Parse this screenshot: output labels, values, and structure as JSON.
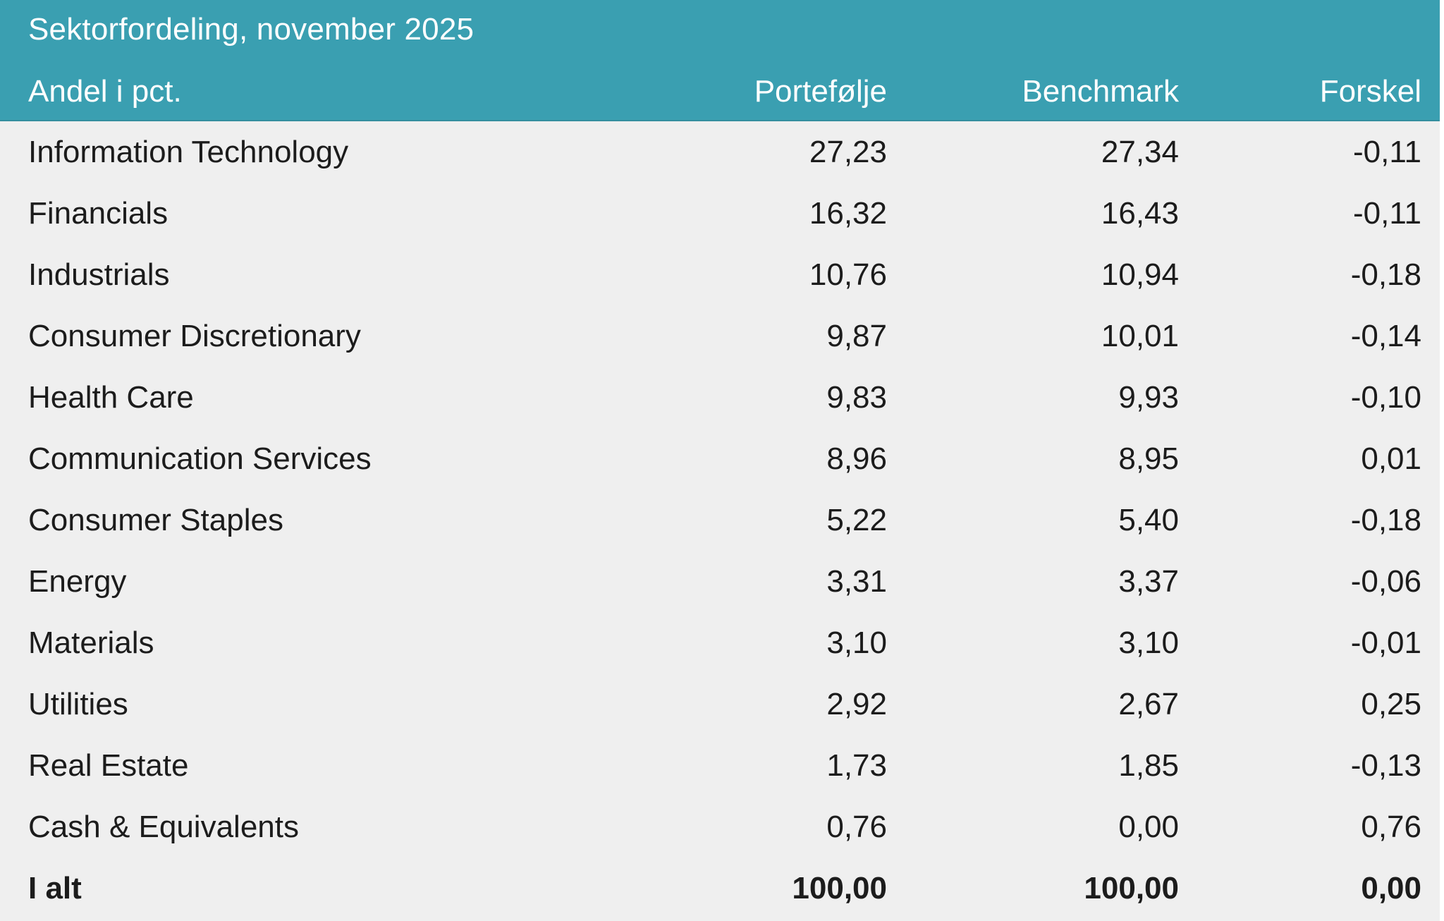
{
  "table": {
    "title": "Sektorfordeling, november 2025",
    "columns": [
      "Andel i pct.",
      "Portefølje",
      "Benchmark",
      "Forskel"
    ],
    "rows": [
      {
        "label": "Information Technology",
        "portfolio": "27,23",
        "benchmark": "27,34",
        "difference": "-0,11"
      },
      {
        "label": "Financials",
        "portfolio": "16,32",
        "benchmark": "16,43",
        "difference": "-0,11"
      },
      {
        "label": "Industrials",
        "portfolio": "10,76",
        "benchmark": "10,94",
        "difference": "-0,18"
      },
      {
        "label": "Consumer Discretionary",
        "portfolio": "9,87",
        "benchmark": "10,01",
        "difference": "-0,14"
      },
      {
        "label": "Health Care",
        "portfolio": "9,83",
        "benchmark": "9,93",
        "difference": "-0,10"
      },
      {
        "label": "Communication Services",
        "portfolio": "8,96",
        "benchmark": "8,95",
        "difference": "0,01"
      },
      {
        "label": "Consumer Staples",
        "portfolio": "5,22",
        "benchmark": "5,40",
        "difference": "-0,18"
      },
      {
        "label": "Energy",
        "portfolio": "3,31",
        "benchmark": "3,37",
        "difference": "-0,06"
      },
      {
        "label": "Materials",
        "portfolio": "3,10",
        "benchmark": "3,10",
        "difference": "-0,01"
      },
      {
        "label": "Utilities",
        "portfolio": "2,92",
        "benchmark": "2,67",
        "difference": "0,25"
      },
      {
        "label": "Real Estate",
        "portfolio": "1,73",
        "benchmark": "1,85",
        "difference": "-0,13"
      },
      {
        "label": "Cash & Equivalents",
        "portfolio": "0,76",
        "benchmark": "0,00",
        "difference": "0,76"
      }
    ],
    "total": {
      "label": "I alt",
      "portfolio": "100,00",
      "benchmark": "100,00",
      "difference": "0,00"
    }
  },
  "chart_data": {
    "type": "table",
    "title": "Sektorfordeling, november 2025",
    "columns": [
      "Andel i pct.",
      "Portefølje",
      "Benchmark",
      "Forskel"
    ],
    "categories": [
      "Information Technology",
      "Financials",
      "Industrials",
      "Consumer Discretionary",
      "Health Care",
      "Communication Services",
      "Consumer Staples",
      "Energy",
      "Materials",
      "Utilities",
      "Real Estate",
      "Cash & Equivalents"
    ],
    "series": [
      {
        "name": "Portefølje",
        "values": [
          27.23,
          16.32,
          10.76,
          9.87,
          9.83,
          8.96,
          5.22,
          3.31,
          3.1,
          2.92,
          1.73,
          0.76
        ]
      },
      {
        "name": "Benchmark",
        "values": [
          27.34,
          16.43,
          10.94,
          10.01,
          9.93,
          8.95,
          5.4,
          3.37,
          3.1,
          2.67,
          1.85,
          0.0
        ]
      },
      {
        "name": "Forskel",
        "values": [
          -0.11,
          -0.11,
          -0.18,
          -0.14,
          -0.1,
          0.01,
          -0.18,
          -0.06,
          -0.01,
          0.25,
          -0.13,
          0.76
        ]
      }
    ],
    "totals": {
      "Portefølje": 100.0,
      "Benchmark": 100.0,
      "Forskel": 0.0
    }
  },
  "colors": {
    "header_background": "#3A9FB1",
    "header_text": "#FFFFFF",
    "body_background": "#EFEFEF",
    "body_text": "#1C1C1C"
  }
}
